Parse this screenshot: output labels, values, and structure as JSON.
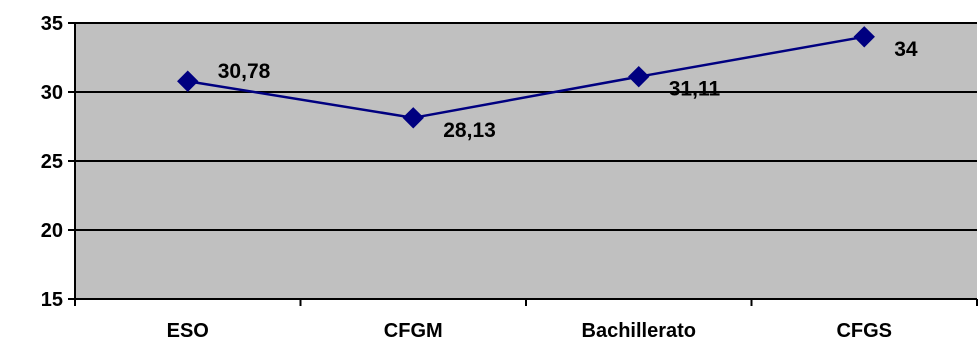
{
  "chart_data": {
    "type": "line",
    "categories": [
      "ESO",
      "CFGM",
      "Bachillerato",
      "CFGS"
    ],
    "series": [
      {
        "values": [
          30.78,
          28.13,
          31.11,
          34
        ],
        "data_labels": [
          "30,78",
          "28,13",
          "31,11",
          "34"
        ],
        "color": "#000080",
        "marker": "diamond"
      }
    ],
    "ylim": [
      15,
      35
    ],
    "yticks": [
      15,
      20,
      25,
      30,
      35
    ],
    "grid": true,
    "plot_background": "#c0c0c0",
    "grid_color": "#000000",
    "legend": "none"
  }
}
